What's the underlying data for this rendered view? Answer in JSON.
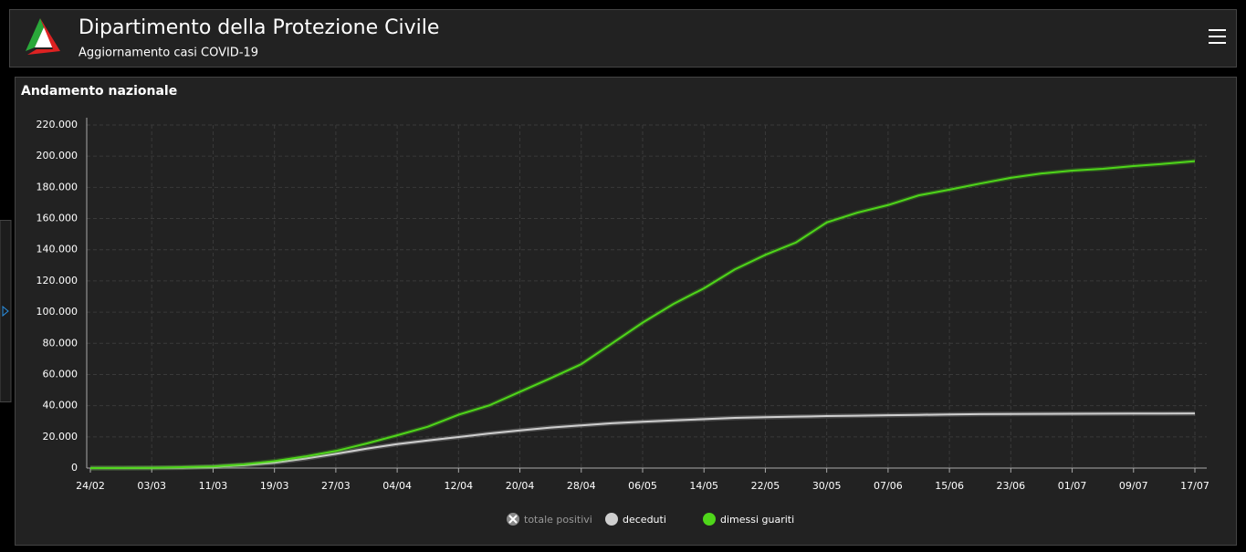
{
  "header": {
    "title": "Dipartimento della Protezione Civile",
    "subtitle": "Aggiornamento casi COVID-19"
  },
  "panel": {
    "title": "Andamento nazionale"
  },
  "chart_data": {
    "type": "line",
    "categories": [
      "24/02",
      null,
      "03/03",
      null,
      "11/03",
      null,
      "19/03",
      null,
      "27/03",
      null,
      "04/04",
      null,
      "12/04",
      null,
      "20/04",
      null,
      "28/04",
      null,
      "06/05",
      null,
      "14/05",
      null,
      "22/05",
      null,
      "30/05",
      null,
      "07/06",
      null,
      "15/06",
      null,
      "23/06",
      null,
      "01/07",
      null,
      "09/07",
      null,
      "17/07"
    ],
    "hidden_series": [
      {
        "name": "totale positivi",
        "color": "#8a8a8a"
      }
    ],
    "series": [
      {
        "name": "deceduti",
        "color": "#cfcfcf",
        "values": [
          7,
          21,
          79,
          233,
          827,
          1809,
          3405,
          6077,
          9134,
          12428,
          15362,
          17669,
          19899,
          22170,
          24114,
          25969,
          27359,
          28710,
          29684,
          30560,
          31368,
          32169,
          32616,
          32955,
          33340,
          33601,
          33846,
          34114,
          34371,
          34561,
          34675,
          34744,
          34818,
          34869,
          34926,
          34984,
          35028
        ]
      },
      {
        "name": "dimessi guariti",
        "color": "#4fd61a",
        "values": [
          1,
          46,
          160,
          589,
          1045,
          2335,
          4440,
          7432,
          10950,
          15729,
          20996,
          26491,
          34211,
          40164,
          48877,
          57576,
          66624,
          79914,
          93245,
          105186,
          115288,
          127326,
          136720,
          144658,
          157507,
          163781,
          168646,
          174865,
          178526,
          182453,
          186111,
          188891,
          190715,
          191944,
          193640,
          195106,
          196806
        ]
      }
    ],
    "ylim": [
      0,
      220000
    ],
    "yticks": [
      0,
      {
        "value": 20000,
        "label": "20.000"
      },
      {
        "value": 40000,
        "label": "40.000"
      },
      {
        "value": 60000,
        "label": "60.000"
      },
      {
        "value": 80000,
        "label": "80.000"
      },
      {
        "value": 100000,
        "label": "100.000"
      },
      {
        "value": 120000,
        "label": "120.000"
      },
      {
        "value": 140000,
        "label": "140.000"
      },
      {
        "value": 160000,
        "label": "160.000"
      },
      {
        "value": 180000,
        "label": "180.000"
      },
      {
        "value": 200000,
        "label": "200.000"
      },
      {
        "value": 220000,
        "label": "220.000"
      }
    ],
    "grid": true
  }
}
